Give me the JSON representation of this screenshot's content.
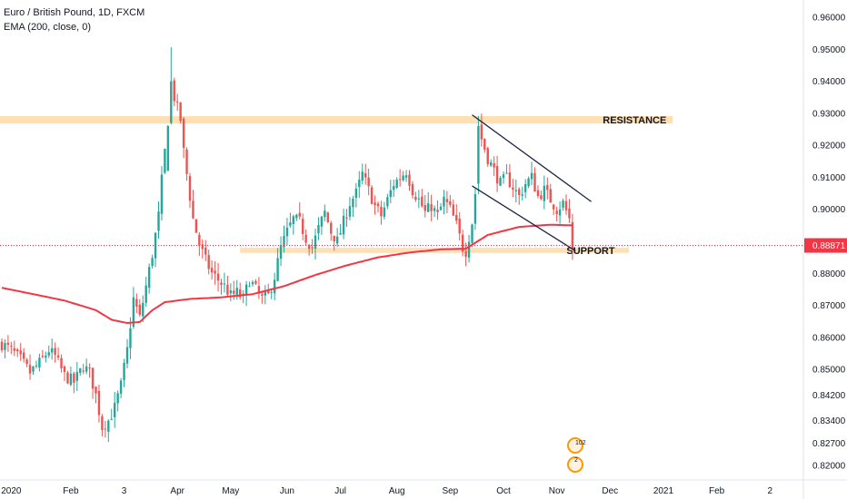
{
  "legend": {
    "symbol": "Euro / British Pound, 1D, FXCM",
    "indicator": "EMA (200, close, 0)"
  },
  "colors": {
    "bull": "#26a69a",
    "bear": "#ef5350",
    "ema": "#f23645",
    "zone": "#ffe0b2",
    "trendline": "#1e2245",
    "current_price_tag": "#f23645",
    "badge_ring": "#ff9800"
  },
  "chart_data": {
    "type": "candlestick",
    "instrument": "EURGBP",
    "timeframe": "1D",
    "source": "FXCM",
    "x_ticks": [
      "2020",
      "Feb",
      "3",
      "Apr",
      "May",
      "Jun",
      "Jul",
      "Aug",
      "Sep",
      "Oct",
      "Nov",
      "Dec",
      "2021",
      "Feb",
      "2"
    ],
    "y_ticks": [
      "0.96000",
      "0.95000",
      "0.94000",
      "0.93000",
      "0.92000",
      "0.91000",
      "0.90000",
      "0.88000",
      "0.87000",
      "0.86000",
      "0.85000",
      "0.84200",
      "0.83400",
      "0.82700",
      "0.82000"
    ],
    "ylim": [
      0.8185,
      0.9625
    ],
    "current_price": "0.88871",
    "close_path": [
      [
        0,
        0.858
      ],
      [
        3,
        0.856
      ],
      [
        6,
        0.853
      ],
      [
        9,
        0.849
      ],
      [
        12,
        0.852
      ],
      [
        15,
        0.856
      ],
      [
        17,
        0.854
      ],
      [
        20,
        0.848
      ],
      [
        23,
        0.846
      ],
      [
        26,
        0.851
      ],
      [
        28,
        0.849
      ],
      [
        30,
        0.842
      ],
      [
        32,
        0.832
      ],
      [
        34,
        0.834
      ],
      [
        36,
        0.838
      ],
      [
        38,
        0.845
      ],
      [
        40,
        0.856
      ],
      [
        42,
        0.872
      ],
      [
        44,
        0.866
      ],
      [
        46,
        0.876
      ],
      [
        48,
        0.886
      ],
      [
        50,
        0.898
      ],
      [
        51,
        0.909
      ],
      [
        53,
        0.927
      ],
      [
        54,
        0.94
      ],
      [
        55,
        0.935
      ],
      [
        57,
        0.928
      ],
      [
        58,
        0.918
      ],
      [
        60,
        0.904
      ],
      [
        61,
        0.897
      ],
      [
        63,
        0.889
      ],
      [
        65,
        0.884
      ],
      [
        67,
        0.88
      ],
      [
        69,
        0.878
      ],
      [
        71,
        0.876
      ],
      [
        73,
        0.873
      ],
      [
        75,
        0.874
      ],
      [
        77,
        0.872
      ],
      [
        79,
        0.878
      ],
      [
        81,
        0.875
      ],
      [
        83,
        0.872
      ],
      [
        85,
        0.873
      ],
      [
        87,
        0.879
      ],
      [
        89,
        0.888
      ],
      [
        91,
        0.893
      ],
      [
        93,
        0.897
      ],
      [
        95,
        0.896
      ],
      [
        97,
        0.891
      ],
      [
        99,
        0.888
      ],
      [
        101,
        0.894
      ],
      [
        103,
        0.899
      ],
      [
        105,
        0.893
      ],
      [
        107,
        0.89
      ],
      [
        109,
        0.896
      ],
      [
        111,
        0.902
      ],
      [
        113,
        0.905
      ],
      [
        115,
        0.911
      ],
      [
        117,
        0.906
      ],
      [
        119,
        0.901
      ],
      [
        121,
        0.898
      ],
      [
        123,
        0.903
      ],
      [
        125,
        0.908
      ],
      [
        127,
        0.91
      ],
      [
        129,
        0.912
      ],
      [
        131,
        0.906
      ],
      [
        133,
        0.903
      ],
      [
        135,
        0.899
      ],
      [
        137,
        0.901
      ],
      [
        139,
        0.898
      ],
      [
        141,
        0.903
      ],
      [
        143,
        0.9
      ],
      [
        145,
        0.895
      ],
      [
        147,
        0.888
      ],
      [
        148,
        0.887
      ],
      [
        150,
        0.896
      ],
      [
        151,
        0.905
      ],
      [
        152,
        0.925
      ],
      [
        153,
        0.922
      ],
      [
        155,
        0.916
      ],
      [
        157,
        0.912
      ],
      [
        159,
        0.908
      ],
      [
        161,
        0.91
      ],
      [
        163,
        0.907
      ],
      [
        165,
        0.904
      ],
      [
        167,
        0.908
      ],
      [
        169,
        0.91
      ],
      [
        171,
        0.904
      ],
      [
        173,
        0.906
      ],
      [
        175,
        0.903
      ],
      [
        177,
        0.9
      ],
      [
        179,
        0.902
      ],
      [
        181,
        0.897
      ],
      [
        182,
        0.887
      ]
    ],
    "ema_path": [
      [
        0,
        0.8755
      ],
      [
        10,
        0.8735
      ],
      [
        20,
        0.8715
      ],
      [
        30,
        0.8685
      ],
      [
        35,
        0.8655
      ],
      [
        40,
        0.8645
      ],
      [
        44,
        0.8648
      ],
      [
        48,
        0.8685
      ],
      [
        52,
        0.871
      ],
      [
        60,
        0.872
      ],
      [
        70,
        0.8725
      ],
      [
        80,
        0.8735
      ],
      [
        90,
        0.876
      ],
      [
        100,
        0.8795
      ],
      [
        110,
        0.8825
      ],
      [
        120,
        0.885
      ],
      [
        130,
        0.8865
      ],
      [
        140,
        0.8875
      ],
      [
        148,
        0.8877
      ],
      [
        155,
        0.892
      ],
      [
        165,
        0.8945
      ],
      [
        175,
        0.8952
      ],
      [
        182,
        0.895
      ]
    ],
    "zones": [
      {
        "name": "RESISTANCE",
        "y_low": 0.9268,
        "y_high": 0.9291,
        "x_start": 0,
        "x_end": 214
      },
      {
        "name": "SUPPORT",
        "y_low": 0.8864,
        "y_high": 0.888,
        "x_start": 76,
        "x_end": 200
      }
    ],
    "trendlines": [
      {
        "name": "channel-top",
        "from": [
          150,
          0.9295
        ],
        "to": [
          188,
          0.9024
        ]
      },
      {
        "name": "channel-bottom",
        "from": [
          150,
          0.9073
        ],
        "to": [
          183,
          0.887
        ]
      }
    ],
    "grid": false,
    "legend_position": "top-left"
  },
  "badges": {
    "upper_number": "102",
    "lower_number": "2"
  }
}
